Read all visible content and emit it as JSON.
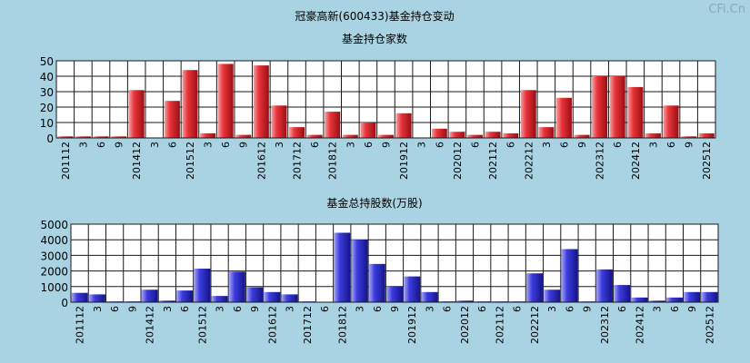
{
  "page_title": "冠豪高新(600433)基金持仓变动",
  "watermark": "CFi.Cn",
  "colors": {
    "background": "#a9d3e3",
    "plot_background": "#ffffff",
    "grid": "#1a1a1a",
    "bar_red": "#e8343a",
    "bar_blue": "#3b3bdd"
  },
  "chart_data": [
    {
      "type": "bar",
      "title": "基金持仓家数",
      "ylim": [
        0,
        50
      ],
      "yticks": [
        0,
        10,
        20,
        30,
        40,
        50
      ],
      "grid": true,
      "tick_labels": [
        "201112",
        "3",
        "6",
        "9",
        "201412",
        "3",
        "6",
        "201512",
        "3",
        "6",
        "9",
        "201612",
        "3",
        "201712",
        "6",
        "201812",
        "3",
        "6",
        "9",
        "201912",
        "3",
        "6",
        "202012",
        "6",
        "202112",
        "6",
        "202212",
        "3",
        "6",
        "9",
        "202312",
        "6",
        "202412",
        "3",
        "6",
        "9",
        "202512"
      ],
      "series": [
        {
          "categories": [
            "201112",
            "3",
            "6",
            "9",
            "201412",
            "3",
            "6",
            "201512",
            "3",
            "6",
            "9",
            "201612",
            "3",
            "201712",
            "6",
            "201812",
            "3",
            "6",
            "9",
            "201912",
            "3",
            "6",
            "202012",
            "6",
            "202112",
            "6",
            "202212",
            "3",
            "6",
            "9",
            "202312",
            "6",
            "202412",
            "3",
            "6",
            "9",
            "202512"
          ],
          "values": [
            1,
            1,
            1,
            1,
            31,
            0,
            24,
            44,
            3,
            48,
            2,
            47,
            21,
            7,
            2,
            17,
            2,
            10,
            2,
            16,
            0,
            6,
            4,
            2,
            4,
            3,
            31,
            7,
            26,
            2,
            40,
            40,
            33,
            3,
            21,
            1,
            3
          ]
        }
      ]
    },
    {
      "type": "bar",
      "title": "基金总持股数(万股)",
      "ylim": [
        0,
        5000
      ],
      "yticks": [
        0,
        1000,
        2000,
        3000,
        4000,
        5000
      ],
      "grid": true,
      "tick_labels": [
        "201112",
        "3",
        "6",
        "9",
        "201412",
        "3",
        "6",
        "201512",
        "3",
        "6",
        "9",
        "201612",
        "3",
        "201712",
        "6",
        "201812",
        "3",
        "6",
        "9",
        "201912",
        "3",
        "6",
        "202012",
        "6",
        "202112",
        "6",
        "202212",
        "3",
        "6",
        "9",
        "202312",
        "6",
        "202412",
        "3",
        "6",
        "9",
        "202512"
      ],
      "series": [
        {
          "categories": [
            "201112",
            "3",
            "6",
            "9",
            "201412",
            "3",
            "6",
            "201512",
            "3",
            "6",
            "9",
            "201612",
            "3",
            "201712",
            "6",
            "201812",
            "3",
            "6",
            "9",
            "201912",
            "3",
            "6",
            "202012",
            "6",
            "202112",
            "6",
            "202212",
            "3",
            "6",
            "9",
            "202312",
            "6",
            "202412",
            "3",
            "6",
            "9",
            "202512"
          ],
          "values": [
            600,
            500,
            50,
            50,
            800,
            100,
            750,
            2150,
            400,
            1950,
            950,
            650,
            500,
            50,
            30,
            4450,
            4000,
            2450,
            1000,
            1650,
            650,
            50,
            100,
            50,
            50,
            50,
            1850,
            800,
            3400,
            50,
            2100,
            1100,
            300,
            100,
            300,
            650,
            650
          ]
        }
      ]
    }
  ]
}
